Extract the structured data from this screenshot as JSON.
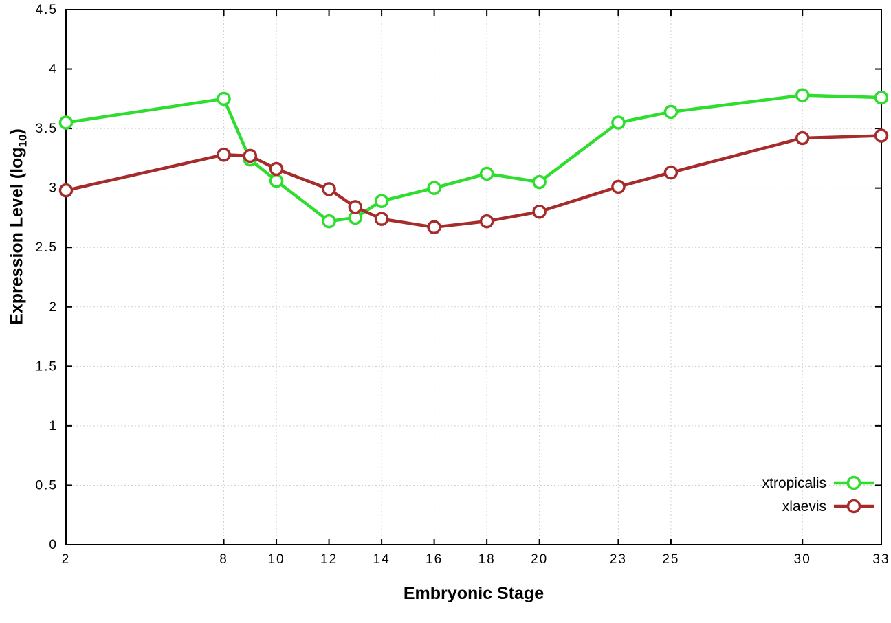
{
  "labels": {
    "xlabel": "Embryonic Stage",
    "ylabel_main": "Expression Level (log",
    "ylabel_sub": "10",
    "ylabel_close": ")"
  },
  "style": {
    "background_color": "#ffffff",
    "grid_color": "#cfcfcf",
    "axis_color": "#000000",
    "xtropicalis_color": "#2edd2e",
    "xlaevis_color": "#a62c2c"
  },
  "chart_data": {
    "type": "line",
    "title": "",
    "xlabel": "Embryonic Stage",
    "ylabel": "Expression Level (log10)",
    "xlim": [
      2,
      33
    ],
    "ylim": [
      0,
      4.5
    ],
    "grid": true,
    "legend_position": "bottom-right",
    "xticks": [
      2,
      8,
      10,
      12,
      14,
      16,
      18,
      20,
      23,
      25,
      30,
      33
    ],
    "xtick_labels": [
      "2",
      "8",
      "10",
      "12",
      "14",
      "16",
      "18",
      "20",
      "23",
      "25",
      "30",
      "33"
    ],
    "yticks": [
      0,
      0.5,
      1,
      1.5,
      2,
      2.5,
      3,
      3.5,
      4,
      4.5
    ],
    "ytick_labels": [
      "0",
      "0.5",
      "1",
      "1.5",
      "2",
      "2.5",
      "3",
      "3.5",
      "4",
      "4.5"
    ],
    "marker": "open-circle",
    "x": [
      2,
      8,
      9,
      10,
      12,
      13,
      14,
      16,
      18,
      20,
      23,
      25,
      30,
      33
    ],
    "series": [
      {
        "name": "xtropicalis",
        "color": "#2edd2e",
        "values": [
          3.55,
          3.75,
          3.24,
          3.06,
          2.72,
          2.75,
          2.89,
          3.0,
          3.12,
          3.05,
          3.55,
          3.64,
          3.78,
          3.76
        ]
      },
      {
        "name": "xlaevis",
        "color": "#a62c2c",
        "values": [
          2.98,
          3.28,
          3.27,
          3.16,
          2.99,
          2.84,
          2.74,
          2.67,
          2.72,
          2.8,
          3.01,
          3.13,
          3.42,
          3.44
        ]
      }
    ]
  }
}
